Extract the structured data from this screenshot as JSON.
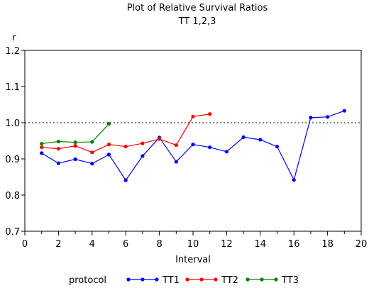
{
  "chart_data": {
    "type": "line",
    "title": "Plot of Relative Survival Ratios",
    "subtitle": "TT 1,2,3",
    "xlabel": "Interval",
    "ylabel": "r",
    "xlim": [
      0,
      20
    ],
    "ylim": [
      0.7,
      1.2
    ],
    "x_ticks": [
      0,
      2,
      4,
      6,
      8,
      10,
      12,
      14,
      16,
      18,
      20
    ],
    "y_ticks": [
      0.7,
      0.8,
      0.9,
      1.0,
      1.1,
      1.2
    ],
    "y_tick_labels": [
      "0.7",
      "0.8",
      "0.9",
      "1.0",
      "1.1",
      "1.2"
    ],
    "reference_line": {
      "y": 1.0,
      "style": "dotted"
    },
    "grid": false,
    "legend": {
      "title": "protocol",
      "placement": "bottom"
    },
    "series": [
      {
        "name": "TT1",
        "color": "#0000ff",
        "points": [
          [
            1,
            0.916
          ],
          [
            2,
            0.888
          ],
          [
            3,
            0.899
          ],
          [
            4,
            0.887
          ],
          [
            5,
            0.912
          ],
          [
            6,
            0.841
          ],
          [
            7,
            0.908
          ],
          [
            8,
            0.959
          ],
          [
            9,
            0.892
          ],
          [
            10,
            0.94
          ],
          [
            11,
            0.932
          ],
          [
            12,
            0.92
          ],
          [
            13,
            0.96
          ],
          [
            14,
            0.953
          ],
          [
            15,
            0.934
          ],
          [
            16,
            0.842
          ],
          [
            17,
            1.014
          ],
          [
            18,
            1.016
          ],
          [
            19,
            1.033
          ]
        ]
      },
      {
        "name": "TT2",
        "color": "#ff0000",
        "points": [
          [
            1,
            0.932
          ],
          [
            2,
            0.928
          ],
          [
            3,
            0.936
          ],
          [
            4,
            0.918
          ],
          [
            5,
            0.94
          ],
          [
            6,
            0.934
          ],
          [
            7,
            0.943
          ],
          [
            8,
            0.955
          ],
          [
            9,
            0.938
          ],
          [
            10,
            1.017
          ],
          [
            11,
            1.024
          ]
        ]
      },
      {
        "name": "TT3",
        "color": "#008000",
        "points": [
          [
            1,
            0.942
          ],
          [
            2,
            0.948
          ],
          [
            3,
            0.946
          ],
          [
            4,
            0.947
          ],
          [
            5,
            0.997
          ]
        ]
      }
    ]
  }
}
